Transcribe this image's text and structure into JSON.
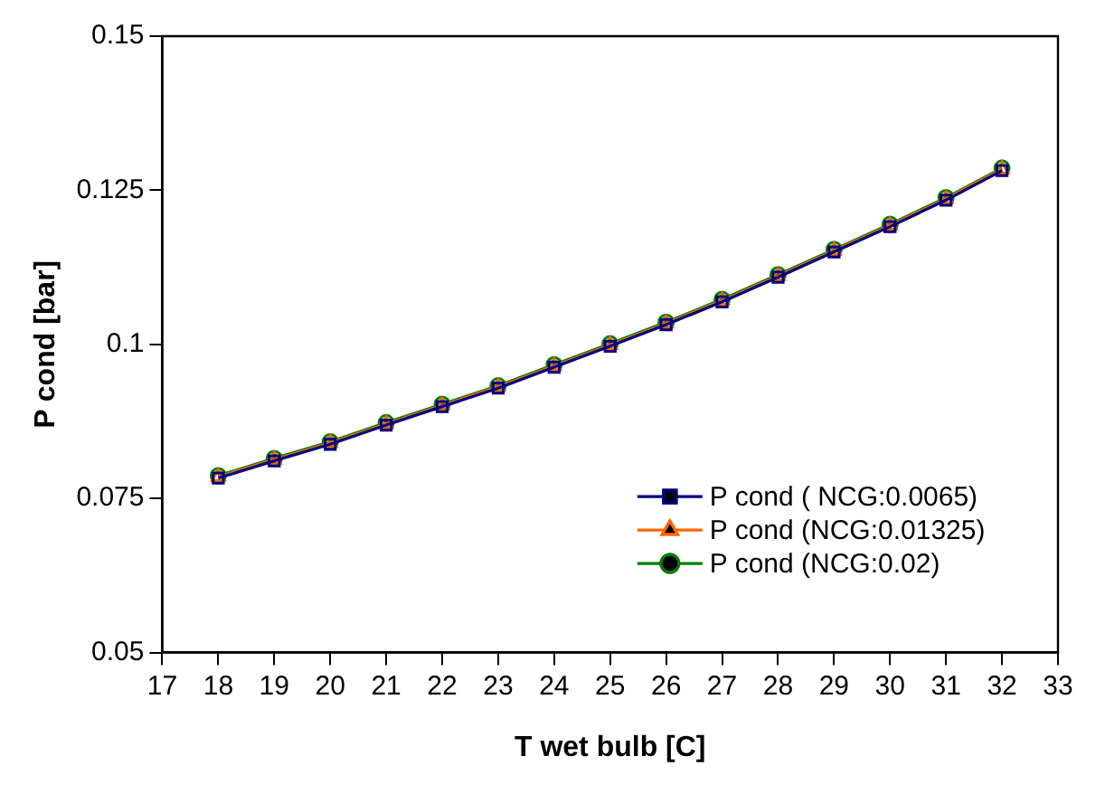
{
  "chart_data": {
    "type": "line",
    "xlabel": "T wet bulb [C]",
    "ylabel": "P cond [bar]",
    "x": [
      18,
      19,
      20,
      21,
      22,
      23,
      24,
      25,
      26,
      27,
      28,
      29,
      30,
      31,
      32
    ],
    "xlim": [
      17,
      33
    ],
    "xticks": [
      17,
      18,
      19,
      20,
      21,
      22,
      23,
      24,
      25,
      26,
      27,
      28,
      29,
      30,
      31,
      32,
      33
    ],
    "ylim": [
      0.05,
      0.15
    ],
    "yticks": [
      0.05,
      0.075,
      0.1,
      0.125,
      0.15
    ],
    "grid": false,
    "legend": "bottom right",
    "line_style": "solid",
    "series": [
      {
        "name": "P cond ( NCG:0.0065)",
        "color": "#000080",
        "marker": "square",
        "values": [
          0.0783,
          0.0811,
          0.0838,
          0.0869,
          0.0899,
          0.0929,
          0.0963,
          0.0997,
          0.1032,
          0.1069,
          0.1109,
          0.115,
          0.1191,
          0.1234,
          0.1282
        ]
      },
      {
        "name": "P cond (NCG:0.01325)",
        "color": "#ff6600",
        "marker": "triangle",
        "values": [
          0.0785,
          0.0813,
          0.084,
          0.0871,
          0.0901,
          0.0931,
          0.0965,
          0.0999,
          0.1034,
          0.1071,
          0.1111,
          0.1152,
          0.1193,
          0.1236,
          0.1284
        ]
      },
      {
        "name": "P cond (NCG:0.02)",
        "color": "#008000",
        "marker": "circle",
        "values": [
          0.0787,
          0.0815,
          0.0842,
          0.0873,
          0.0903,
          0.0933,
          0.0967,
          0.1001,
          0.1036,
          0.1073,
          0.1113,
          0.1154,
          0.1195,
          0.1238,
          0.1286
        ]
      }
    ]
  }
}
